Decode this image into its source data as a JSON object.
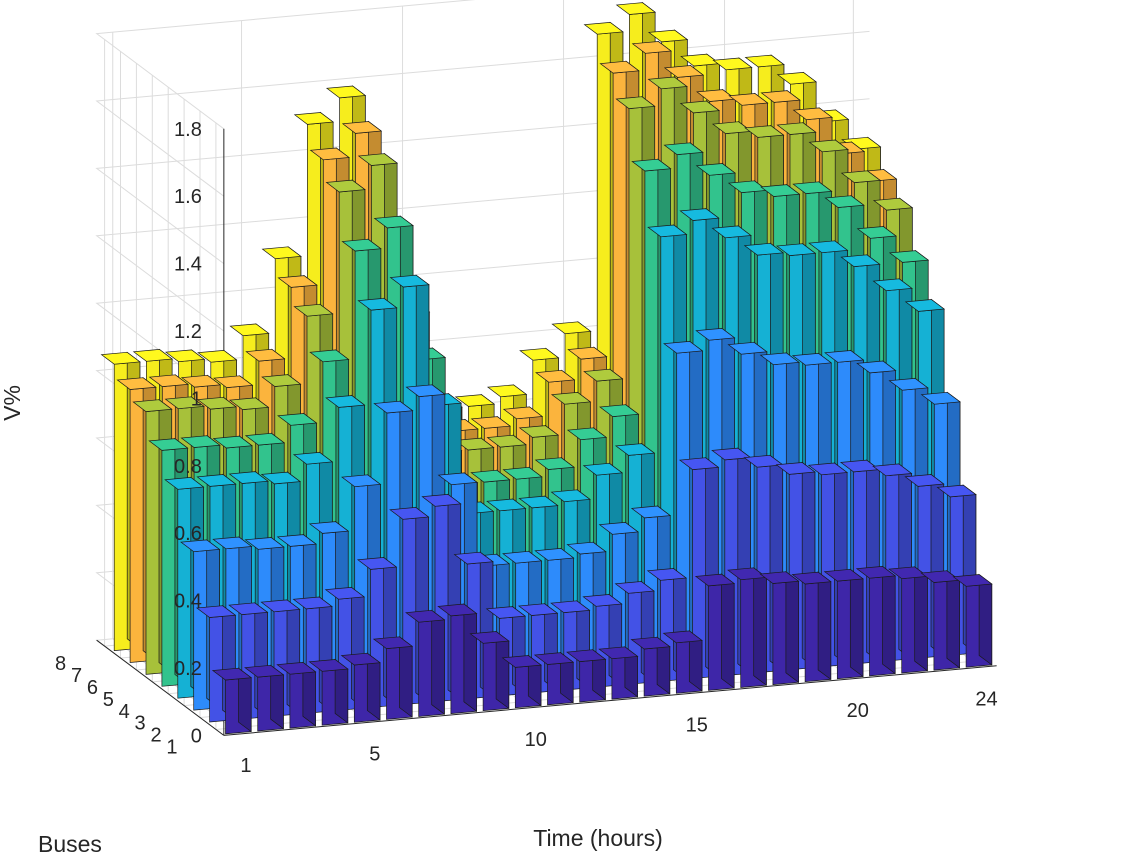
{
  "chart_data": {
    "type": "bar3",
    "title": "",
    "xlabel": "Time (hours)",
    "ylabel": "Buses",
    "zlabel": "V%",
    "zlim": [
      0,
      1.8
    ],
    "xlim": [
      0,
      25
    ],
    "x_ticks": [
      "1",
      "5",
      "10",
      "15",
      "20",
      "24"
    ],
    "y_ticks": [
      "1",
      "2",
      "3",
      "4",
      "5",
      "6",
      "7",
      "8"
    ],
    "z_ticks": [
      "0",
      "0.2",
      "0.4",
      "0.6",
      "0.8",
      "1",
      "1.2",
      "1.4",
      "1.6",
      "1.8"
    ],
    "grid": true,
    "colormap": "parula",
    "hours": [
      1,
      2,
      3,
      4,
      5,
      6,
      7,
      8,
      9,
      10,
      11,
      12,
      13,
      14,
      15,
      16,
      17,
      18,
      19,
      20,
      21,
      22,
      23,
      24
    ],
    "series": [
      {
        "name": "1",
        "color": "#3e26a8",
        "values": [
          0.16,
          0.16,
          0.16,
          0.16,
          0.17,
          0.21,
          0.28,
          0.29,
          0.2,
          0.12,
          0.12,
          0.12,
          0.12,
          0.14,
          0.15,
          0.31,
          0.32,
          0.3,
          0.29,
          0.29,
          0.29,
          0.28,
          0.26,
          0.24
        ]
      },
      {
        "name": "2",
        "color": "#4352e6",
        "values": [
          0.31,
          0.31,
          0.31,
          0.31,
          0.33,
          0.41,
          0.55,
          0.58,
          0.4,
          0.23,
          0.23,
          0.23,
          0.24,
          0.27,
          0.3,
          0.62,
          0.64,
          0.61,
          0.58,
          0.57,
          0.57,
          0.55,
          0.51,
          0.47
        ]
      },
      {
        "name": "3",
        "color": "#2d8bfb",
        "values": [
          0.47,
          0.47,
          0.46,
          0.46,
          0.49,
          0.62,
          0.83,
          0.87,
          0.6,
          0.35,
          0.35,
          0.35,
          0.36,
          0.41,
          0.45,
          0.93,
          0.96,
          0.91,
          0.87,
          0.86,
          0.86,
          0.82,
          0.76,
          0.71
        ]
      },
      {
        "name": "4",
        "color": "#15b1d4",
        "values": [
          0.62,
          0.62,
          0.62,
          0.61,
          0.66,
          0.82,
          1.1,
          1.16,
          0.8,
          0.47,
          0.47,
          0.47,
          0.48,
          0.55,
          0.6,
          1.24,
          1.28,
          1.22,
          1.16,
          1.15,
          1.15,
          1.1,
          1.02,
          0.95
        ]
      },
      {
        "name": "5",
        "color": "#32c38d",
        "values": [
          0.7,
          0.7,
          0.69,
          0.69,
          0.74,
          0.92,
          1.24,
          1.3,
          0.9,
          0.52,
          0.52,
          0.52,
          0.54,
          0.62,
          0.68,
          1.4,
          1.44,
          1.37,
          1.31,
          1.29,
          1.29,
          1.24,
          1.14,
          1.06
        ]
      },
      {
        "name": "6",
        "color": "#a7c13a",
        "values": [
          0.78,
          0.78,
          0.77,
          0.76,
          0.82,
          1.02,
          1.38,
          1.45,
          1.0,
          0.58,
          0.58,
          0.58,
          0.6,
          0.69,
          0.75,
          1.55,
          1.6,
          1.52,
          1.45,
          1.43,
          1.43,
          1.37,
          1.27,
          1.18
        ]
      },
      {
        "name": "7",
        "color": "#fbb43d",
        "values": [
          0.81,
          0.81,
          0.8,
          0.79,
          0.86,
          1.07,
          1.44,
          1.51,
          1.04,
          0.6,
          0.6,
          0.6,
          0.62,
          0.72,
          0.78,
          1.62,
          1.67,
          1.59,
          1.51,
          1.49,
          1.49,
          1.43,
          1.32,
          1.23
        ]
      },
      {
        "name": "8",
        "color": "#f6ed1d",
        "values": [
          0.85,
          0.85,
          0.84,
          0.83,
          0.9,
          1.12,
          1.51,
          1.58,
          1.09,
          0.63,
          0.63,
          0.63,
          0.65,
          0.75,
          0.82,
          1.7,
          1.75,
          1.66,
          1.58,
          1.56,
          1.56,
          1.5,
          1.38,
          1.29
        ]
      }
    ]
  }
}
